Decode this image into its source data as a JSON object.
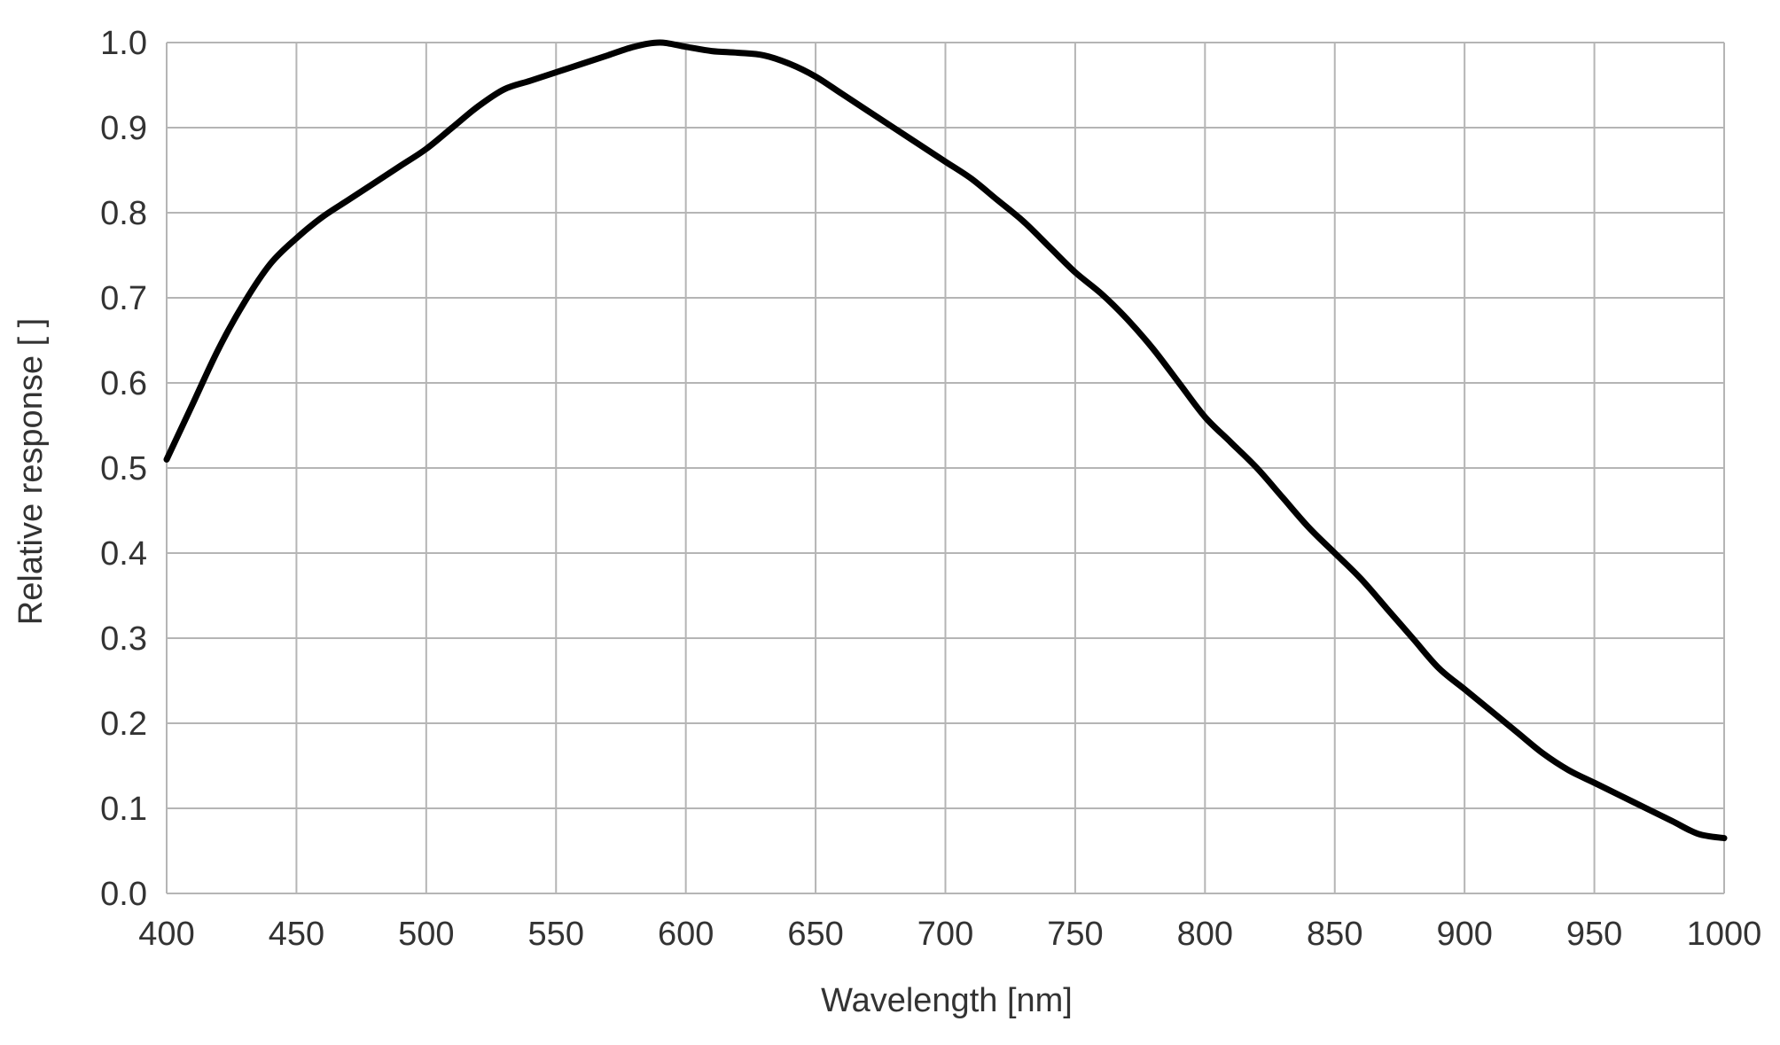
{
  "chart_data": {
    "type": "line",
    "title": "",
    "xlabel": "Wavelength [nm]",
    "ylabel": "Relative response [ ]",
    "xlim": [
      400,
      1000
    ],
    "ylim": [
      0.0,
      1.0
    ],
    "xticks": [
      400,
      450,
      500,
      550,
      600,
      650,
      700,
      750,
      800,
      850,
      900,
      950,
      1000
    ],
    "yticks": [
      0.0,
      0.1,
      0.2,
      0.3,
      0.4,
      0.5,
      0.6,
      0.7,
      0.8,
      0.9,
      1.0
    ],
    "xtick_labels": [
      "400",
      "450",
      "500",
      "550",
      "600",
      "650",
      "700",
      "750",
      "800",
      "850",
      "900",
      "950",
      "1000"
    ],
    "ytick_labels": [
      "0.0",
      "0.1",
      "0.2",
      "0.3",
      "0.4",
      "0.5",
      "0.6",
      "0.7",
      "0.8",
      "0.9",
      "1.0"
    ],
    "grid": true,
    "series": [
      {
        "name": "Relative response",
        "color": "#000000",
        "x": [
          400,
          410,
          420,
          430,
          440,
          450,
          460,
          470,
          480,
          490,
          500,
          510,
          520,
          530,
          540,
          550,
          560,
          570,
          580,
          590,
          600,
          610,
          620,
          630,
          640,
          650,
          660,
          670,
          680,
          690,
          700,
          710,
          720,
          730,
          740,
          750,
          760,
          770,
          780,
          790,
          800,
          810,
          820,
          830,
          840,
          850,
          860,
          870,
          880,
          890,
          900,
          910,
          920,
          930,
          940,
          950,
          960,
          970,
          980,
          990,
          1000
        ],
        "values": [
          0.51,
          0.575,
          0.64,
          0.695,
          0.74,
          0.77,
          0.795,
          0.815,
          0.835,
          0.855,
          0.875,
          0.9,
          0.925,
          0.945,
          0.955,
          0.965,
          0.975,
          0.985,
          0.995,
          1.0,
          0.995,
          0.99,
          0.988,
          0.985,
          0.975,
          0.96,
          0.94,
          0.92,
          0.9,
          0.88,
          0.86,
          0.84,
          0.815,
          0.79,
          0.76,
          0.73,
          0.705,
          0.675,
          0.64,
          0.6,
          0.56,
          0.53,
          0.5,
          0.465,
          0.43,
          0.4,
          0.37,
          0.335,
          0.3,
          0.265,
          0.24,
          0.215,
          0.19,
          0.165,
          0.145,
          0.13,
          0.115,
          0.1,
          0.085,
          0.07,
          0.065
        ]
      }
    ]
  }
}
